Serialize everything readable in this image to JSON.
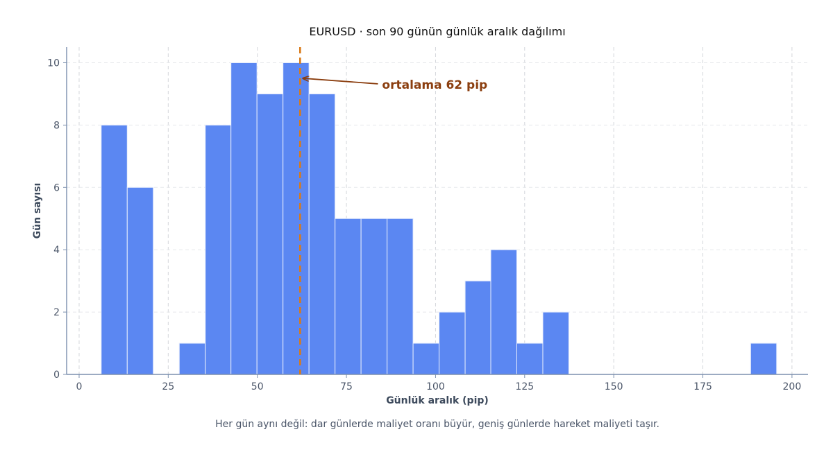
{
  "chart_data": {
    "type": "bar",
    "title": "EURUSD · son 90 günün günlük aralık dağılımı",
    "xlabel": "Günlük aralık (pip)",
    "ylabel": "Gün sayısı",
    "caption": "Her gün aynı değil: dar günlerde maliyet oranı büyür, geniş günlerde hareket maliyeti taşır.",
    "xlim": [
      -3.5,
      204.5
    ],
    "ylim": [
      0,
      10.5
    ],
    "xticks": [
      0,
      25,
      50,
      75,
      100,
      125,
      150,
      175,
      200
    ],
    "xtick_labels": [
      "0",
      "25",
      "50",
      "75",
      "100",
      "125",
      "150",
      "175",
      "200"
    ],
    "yticks": [
      0,
      2,
      4,
      6,
      8,
      10
    ],
    "ytick_labels": [
      "0",
      "2",
      "4",
      "6",
      "8",
      "10"
    ],
    "grid": true,
    "bins": [
      {
        "start": 6.2,
        "end": 13.5,
        "count": 8
      },
      {
        "start": 13.5,
        "end": 20.8,
        "count": 6
      },
      {
        "start": 20.8,
        "end": 28.1,
        "count": 0
      },
      {
        "start": 28.1,
        "end": 35.4,
        "count": 1
      },
      {
        "start": 35.4,
        "end": 42.6,
        "count": 8
      },
      {
        "start": 42.6,
        "end": 49.9,
        "count": 10
      },
      {
        "start": 49.9,
        "end": 57.2,
        "count": 9
      },
      {
        "start": 57.2,
        "end": 64.5,
        "count": 10
      },
      {
        "start": 64.5,
        "end": 71.8,
        "count": 9
      },
      {
        "start": 71.8,
        "end": 79.1,
        "count": 5
      },
      {
        "start": 79.1,
        "end": 86.4,
        "count": 5
      },
      {
        "start": 86.4,
        "end": 93.7,
        "count": 5
      },
      {
        "start": 93.7,
        "end": 101.0,
        "count": 1
      },
      {
        "start": 101.0,
        "end": 108.3,
        "count": 2
      },
      {
        "start": 108.3,
        "end": 115.5,
        "count": 3
      },
      {
        "start": 115.5,
        "end": 122.8,
        "count": 4
      },
      {
        "start": 122.8,
        "end": 130.1,
        "count": 1
      },
      {
        "start": 130.1,
        "end": 137.4,
        "count": 2
      },
      {
        "start": 137.4,
        "end": 144.7,
        "count": 0
      },
      {
        "start": 144.7,
        "end": 152.0,
        "count": 0
      },
      {
        "start": 152.0,
        "end": 159.3,
        "count": 0
      },
      {
        "start": 159.3,
        "end": 166.6,
        "count": 0
      },
      {
        "start": 166.6,
        "end": 173.9,
        "count": 0
      },
      {
        "start": 173.9,
        "end": 181.2,
        "count": 0
      },
      {
        "start": 181.2,
        "end": 188.4,
        "count": 0
      },
      {
        "start": 188.4,
        "end": 195.7,
        "count": 1
      }
    ],
    "mean_line": {
      "x": 62,
      "color": "#d97a18"
    },
    "annotation": {
      "text": "ortalama 62 pip",
      "point": [
        62,
        9.5
      ],
      "text_pos": [
        85,
        9.3
      ],
      "color": "#8b3e0f"
    },
    "bar_color": "#5b87f2",
    "bar_edge_color": "#e8eefc",
    "axis_color": "#7b8fad",
    "grid_color": "#d3d6db"
  }
}
